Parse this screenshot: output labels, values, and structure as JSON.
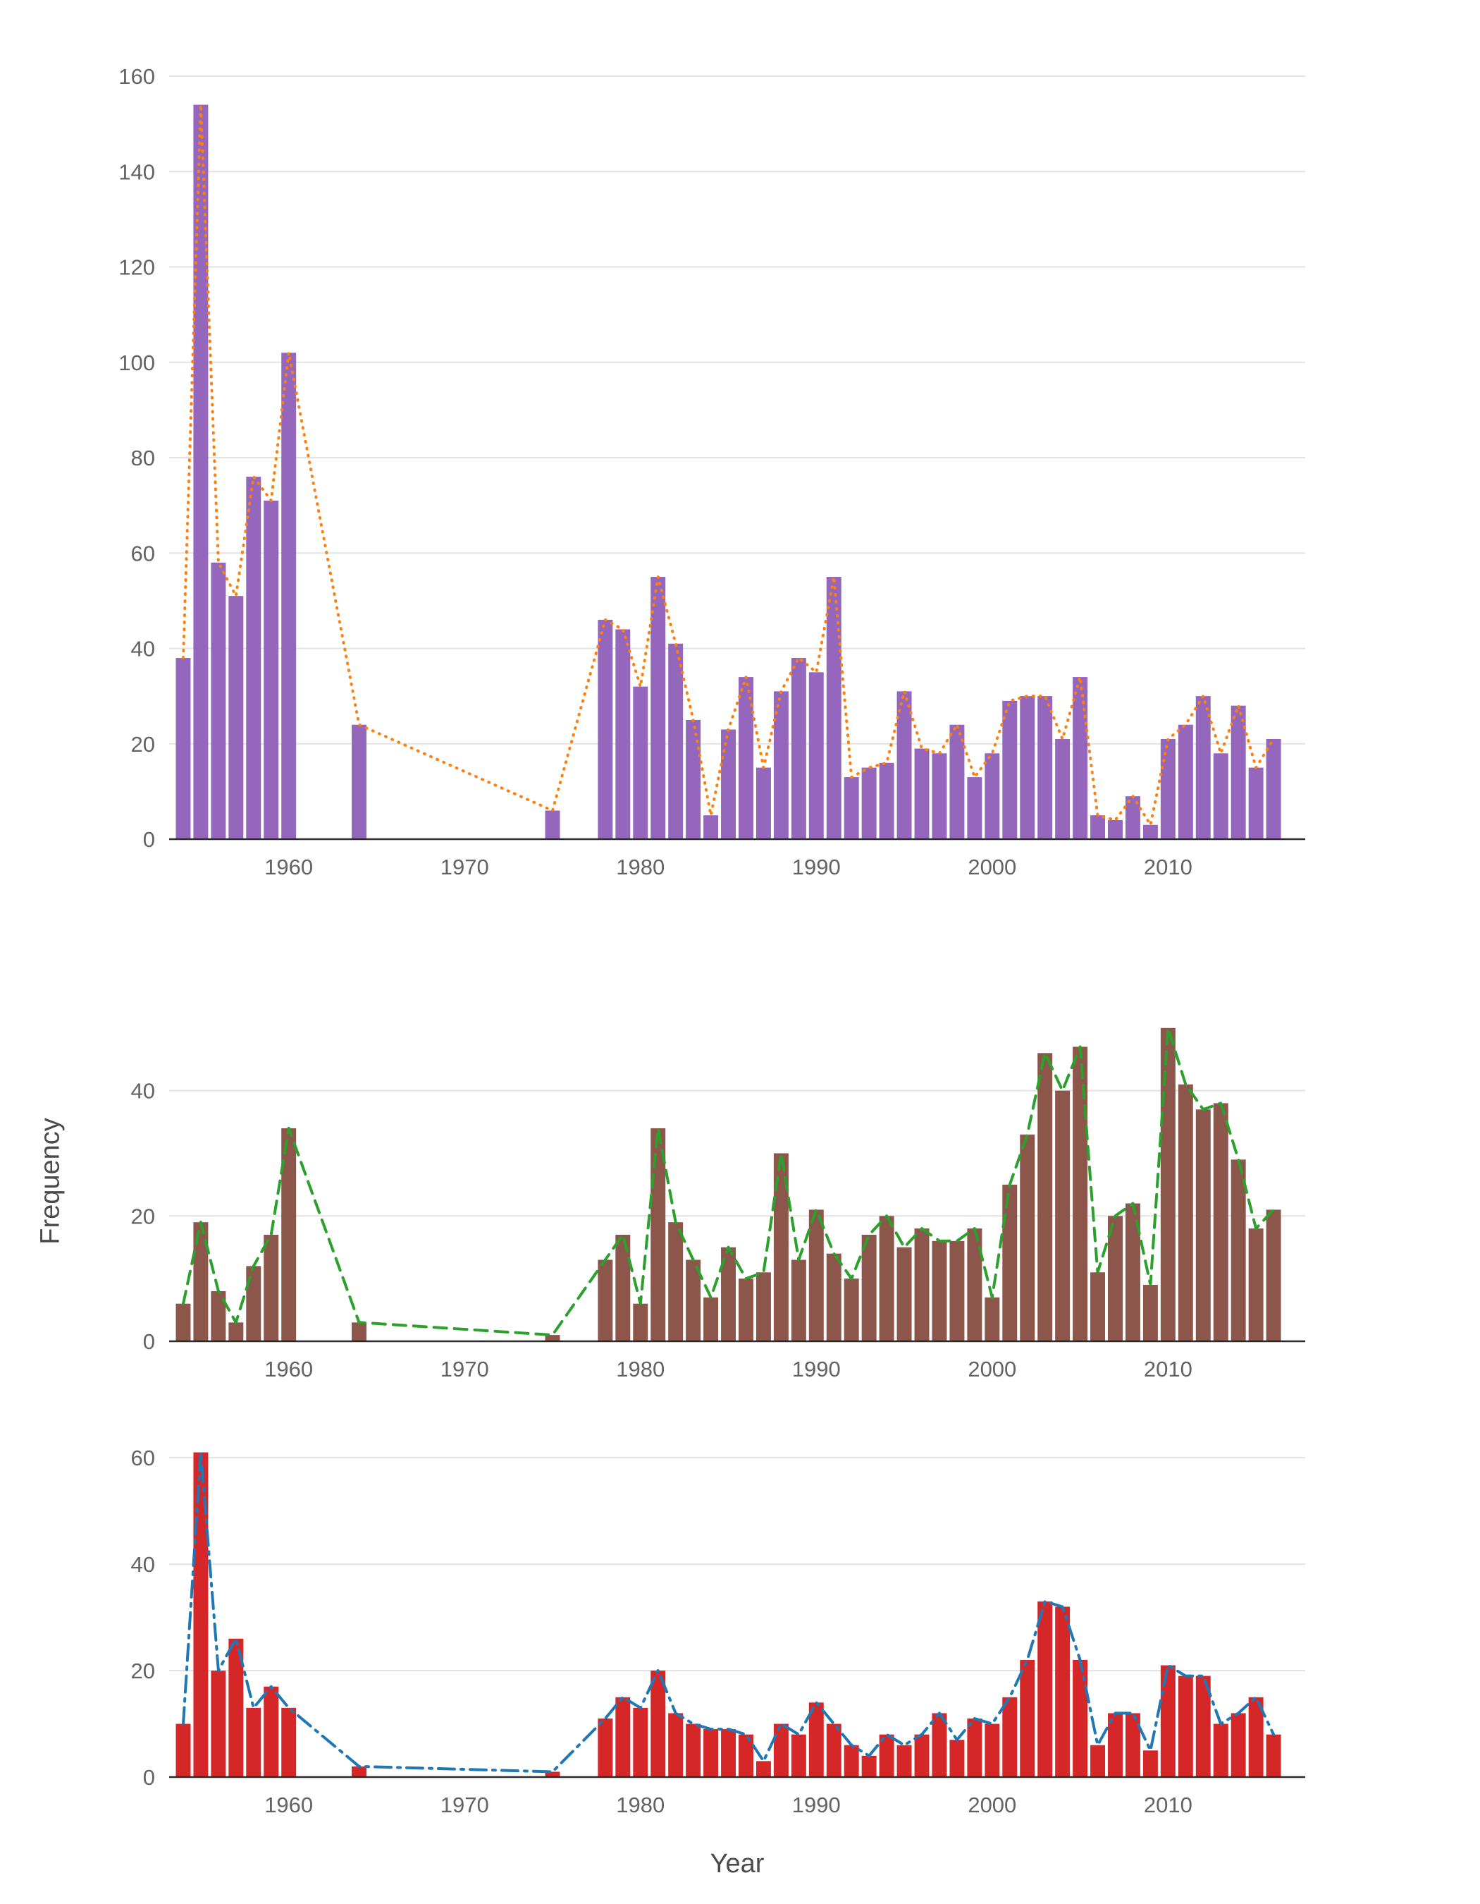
{
  "figure": {
    "xlabel": "Year",
    "ylabel": "Frequency"
  },
  "axes": {
    "xticks": [
      1960,
      1970,
      1980,
      1990,
      2000,
      2010
    ],
    "xlim": [
      1953.2,
      2017.8
    ],
    "grid": "horizontal",
    "background": "#ffffff",
    "gridline_color": "#e3e3e3",
    "axis_line_color": "#2b2b2b",
    "tick_label_color": "#636363"
  },
  "chart_data": [
    {
      "type": "bar",
      "name": "histogram-top",
      "bar_color": "#9467bd",
      "overlay_line": {
        "color": "#ff7f0e",
        "dash": "dotted"
      },
      "ylim": [
        0,
        160
      ],
      "yticks": [
        0,
        20,
        40,
        60,
        80,
        100,
        120,
        140,
        160
      ],
      "x": [
        1954,
        1955,
        1956,
        1957,
        1958,
        1959,
        1960,
        1964,
        1975,
        1978,
        1979,
        1980,
        1981,
        1982,
        1983,
        1984,
        1985,
        1986,
        1987,
        1988,
        1989,
        1990,
        1991,
        1992,
        1993,
        1994,
        1995,
        1996,
        1997,
        1998,
        1999,
        2000,
        2001,
        2002,
        2003,
        2004,
        2005,
        2006,
        2007,
        2008,
        2009,
        2010,
        2011,
        2012,
        2013,
        2014,
        2015,
        2016
      ],
      "values": [
        38,
        154,
        58,
        51,
        76,
        71,
        102,
        24,
        6,
        46,
        44,
        32,
        55,
        41,
        25,
        5,
        23,
        34,
        15,
        31,
        38,
        35,
        55,
        13,
        15,
        16,
        31,
        19,
        18,
        24,
        13,
        18,
        29,
        30,
        30,
        21,
        34,
        5,
        4,
        9,
        3,
        21,
        24,
        30,
        18,
        28,
        15,
        21
      ]
    },
    {
      "type": "bar",
      "name": "histogram-middle",
      "bar_color": "#8c564b",
      "overlay_line": {
        "color": "#2ca02c",
        "dash": "dashed"
      },
      "ylim": [
        0,
        52
      ],
      "yticks": [
        0,
        20,
        40
      ],
      "x": [
        1954,
        1955,
        1956,
        1957,
        1958,
        1959,
        1960,
        1964,
        1975,
        1978,
        1979,
        1980,
        1981,
        1982,
        1983,
        1984,
        1985,
        1986,
        1987,
        1988,
        1989,
        1990,
        1991,
        1992,
        1993,
        1994,
        1995,
        1996,
        1997,
        1998,
        1999,
        2000,
        2001,
        2002,
        2003,
        2004,
        2005,
        2006,
        2007,
        2008,
        2009,
        2010,
        2011,
        2012,
        2013,
        2014,
        2015,
        2016
      ],
      "values": [
        6,
        19,
        8,
        3,
        12,
        17,
        34,
        3,
        1,
        13,
        17,
        6,
        34,
        19,
        13,
        7,
        15,
        10,
        11,
        30,
        13,
        21,
        14,
        10,
        17,
        20,
        15,
        18,
        16,
        16,
        18,
        7,
        25,
        33,
        46,
        40,
        47,
        11,
        20,
        22,
        9,
        50,
        41,
        37,
        38,
        29,
        18,
        21
      ]
    },
    {
      "type": "bar",
      "name": "histogram-bottom",
      "bar_color": "#d62728",
      "overlay_line": {
        "color": "#1f77b4",
        "dash": "dashdot"
      },
      "ylim": [
        0,
        62
      ],
      "yticks": [
        0,
        20,
        40,
        60
      ],
      "x": [
        1954,
        1955,
        1956,
        1957,
        1958,
        1959,
        1960,
        1964,
        1975,
        1978,
        1979,
        1980,
        1981,
        1982,
        1983,
        1984,
        1985,
        1986,
        1987,
        1988,
        1989,
        1990,
        1991,
        1992,
        1993,
        1994,
        1995,
        1996,
        1997,
        1998,
        1999,
        2000,
        2001,
        2002,
        2003,
        2004,
        2005,
        2006,
        2007,
        2008,
        2009,
        2010,
        2011,
        2012,
        2013,
        2014,
        2015,
        2016
      ],
      "values": [
        10,
        61,
        20,
        26,
        13,
        17,
        13,
        2,
        1,
        11,
        15,
        13,
        20,
        12,
        10,
        9,
        9,
        8,
        3,
        10,
        8,
        14,
        10,
        6,
        4,
        8,
        6,
        8,
        12,
        7,
        11,
        10,
        15,
        22,
        33,
        32,
        22,
        6,
        12,
        12,
        5,
        21,
        19,
        19,
        10,
        12,
        15,
        8
      ]
    }
  ]
}
